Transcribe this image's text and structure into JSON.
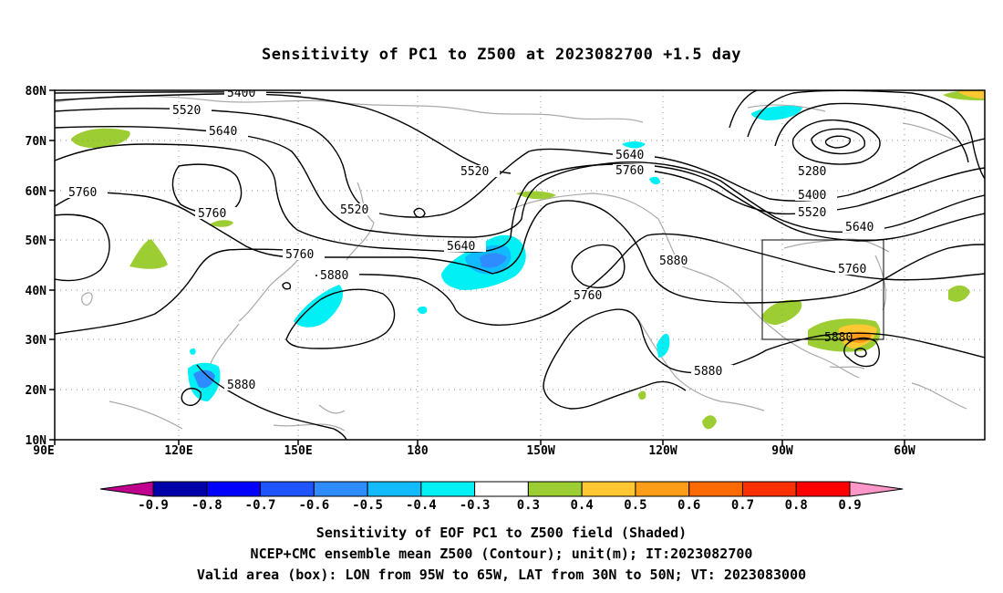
{
  "title": "Sensitivity of PC1 to Z500 at 2023082700 +1.5 day",
  "map": {
    "lon_range": [
      "90E",
      "60W (extended to 45W)"
    ],
    "lat_ticks": [
      "80N",
      "70N",
      "60N",
      "50N",
      "40N",
      "30N",
      "20N",
      "10N"
    ],
    "lon_ticks": [
      "90E",
      "120E",
      "150E",
      "180",
      "150W",
      "120W",
      "90W",
      "60W"
    ],
    "grid": "dotted",
    "contour_labels": [
      "5400",
      "5520",
      "5640",
      "5760",
      "5520",
      "5520",
      "5640",
      "5760",
      "5640",
      "5760",
      "5280",
      "5400",
      "5520",
      "5640",
      "5760",
      "5880",
      "5760",
      "5880",
      "5880",
      "5760",
      "5880",
      "5880"
    ],
    "valid_box": {
      "lon_from": "95W",
      "lon_to": "65W",
      "lat_from": "30N",
      "lat_to": "50N"
    }
  },
  "colorbar": {
    "labels": [
      "-0.9",
      "-0.8",
      "-0.7",
      "-0.6",
      "-0.5",
      "-0.4",
      "-0.3",
      "0.3",
      "0.4",
      "0.5",
      "0.6",
      "0.7",
      "0.8",
      "0.9"
    ],
    "colors": [
      "#0000a8",
      "#0000ff",
      "#1f54ff",
      "#2e8cff",
      "#12baff",
      "#00f0f6",
      "#ffffff",
      "#9ccd32",
      "#ffc832",
      "#ff9c18",
      "#ff6a00",
      "#ff3000",
      "#ff0000"
    ],
    "low_arrow_color": "#c0008c",
    "high_arrow_color": "#ff96c8"
  },
  "captions": {
    "line1": "Sensitivity of EOF PC1 to Z500 field (Shaded)",
    "line2": "NCEP+CMC ensemble mean Z500 (Contour); unit(m); IT:2023082700",
    "line3": "Valid area (box): LON from 95W to 65W, LAT from 30N to 50N; VT: 2023083000"
  }
}
